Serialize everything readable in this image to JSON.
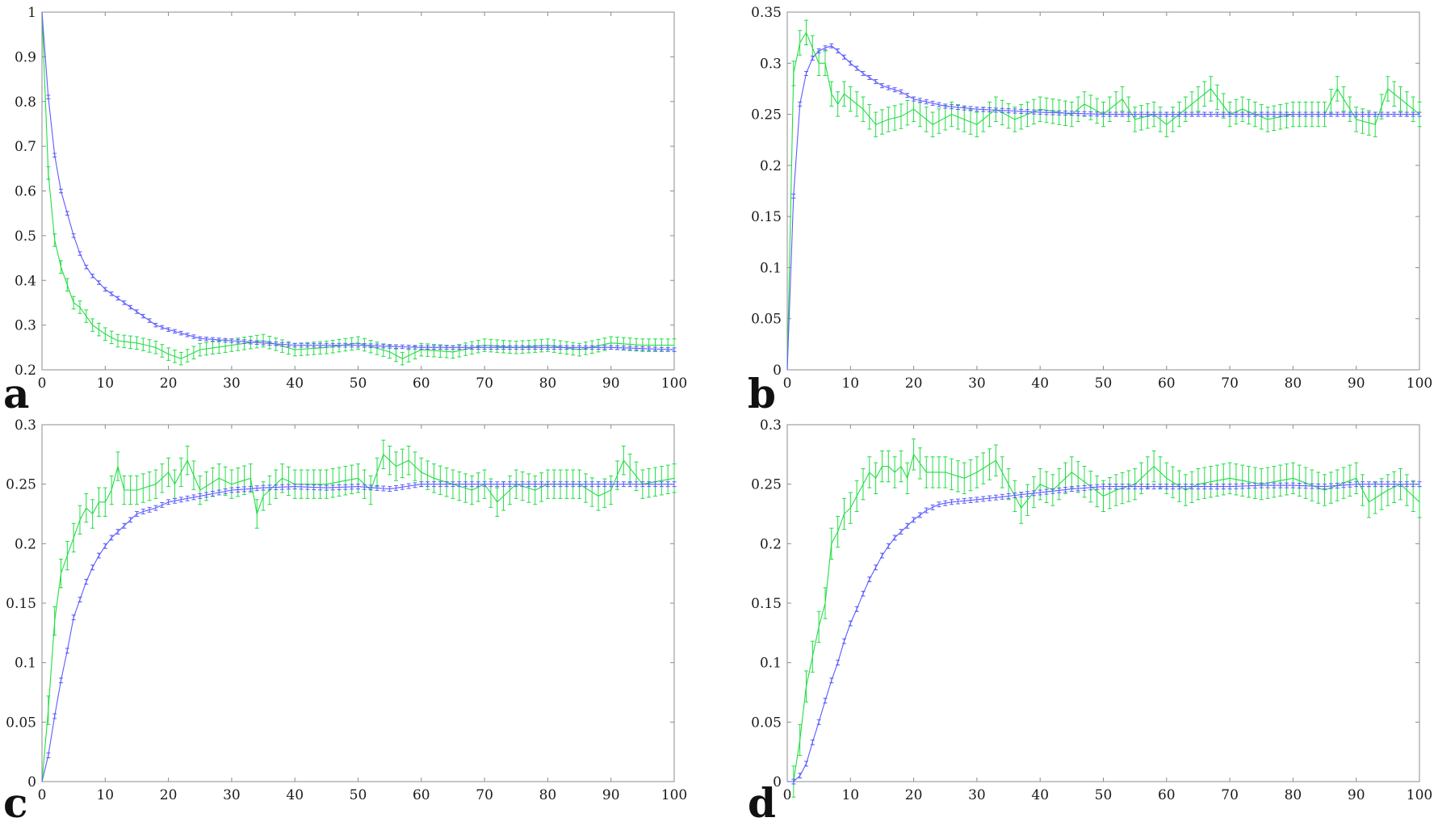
{
  "colors": {
    "series_blue": "#5b5bff",
    "series_green": "#22dd44",
    "axis": "#8c8c8c"
  },
  "chart_data": [
    {
      "type": "line",
      "panel_label": "a",
      "xlim": [
        0,
        100
      ],
      "ylim": [
        0.2,
        1
      ],
      "xticks": [
        "0",
        "10",
        "20",
        "30",
        "40",
        "50",
        "60",
        "70",
        "80",
        "90",
        "100"
      ],
      "yticks": [
        "0.2",
        "0.3",
        "0.4",
        "0.5",
        "0.6",
        "0.7",
        "0.8",
        "0.9",
        "1"
      ],
      "series": [
        {
          "x": [
            0,
            1,
            2,
            3,
            4,
            5,
            6,
            7,
            8,
            10,
            12,
            15,
            18,
            20,
            25,
            30,
            40,
            50,
            60,
            70,
            80,
            90,
            100
          ],
          "values": [
            1.0,
            0.81,
            0.68,
            0.6,
            0.55,
            0.5,
            0.46,
            0.43,
            0.41,
            0.38,
            0.36,
            0.33,
            0.3,
            0.29,
            0.27,
            0.265,
            0.255,
            0.255,
            0.25,
            0.25,
            0.25,
            0.25,
            0.245
          ],
          "err": 0.004
        },
        {
          "x": [
            0,
            1,
            2,
            3,
            4,
            5,
            6,
            7,
            8,
            10,
            12,
            15,
            18,
            20,
            22,
            25,
            30,
            35,
            40,
            45,
            50,
            55,
            57,
            60,
            65,
            70,
            75,
            80,
            85,
            90,
            95,
            100
          ],
          "values": [
            1.0,
            0.64,
            0.49,
            0.43,
            0.39,
            0.35,
            0.34,
            0.32,
            0.3,
            0.28,
            0.265,
            0.26,
            0.25,
            0.235,
            0.225,
            0.245,
            0.255,
            0.265,
            0.245,
            0.25,
            0.26,
            0.24,
            0.225,
            0.245,
            0.24,
            0.255,
            0.25,
            0.255,
            0.245,
            0.26,
            0.255,
            0.255
          ],
          "err": 0.014
        }
      ]
    },
    {
      "type": "line",
      "panel_label": "b",
      "xlim": [
        0,
        100
      ],
      "ylim": [
        0,
        0.35
      ],
      "xticks": [
        "0",
        "10",
        "20",
        "30",
        "40",
        "50",
        "60",
        "70",
        "80",
        "90",
        "100"
      ],
      "yticks": [
        "0",
        "0.05",
        "0.1",
        "0.15",
        "0.2",
        "0.25",
        "0.3",
        "0.35"
      ],
      "series": [
        {
          "x": [
            0,
            1,
            2,
            3,
            4,
            5,
            6,
            7,
            8,
            10,
            12,
            15,
            18,
            20,
            25,
            30,
            40,
            50,
            60,
            70,
            80,
            90,
            100
          ],
          "values": [
            0,
            0.17,
            0.26,
            0.29,
            0.305,
            0.312,
            0.315,
            0.317,
            0.312,
            0.3,
            0.29,
            0.278,
            0.272,
            0.265,
            0.258,
            0.255,
            0.252,
            0.25,
            0.25,
            0.25,
            0.25,
            0.25,
            0.25
          ],
          "err": 0.002
        },
        {
          "x": [
            0,
            1,
            2,
            3,
            4,
            5,
            6,
            7,
            8,
            9,
            10,
            12,
            14,
            16,
            18,
            20,
            23,
            26,
            30,
            33,
            36,
            40,
            45,
            47,
            50,
            53,
            55,
            58,
            60,
            63,
            67,
            70,
            72,
            76,
            80,
            85,
            87,
            90,
            93,
            95,
            100
          ],
          "values": [
            0,
            0.29,
            0.32,
            0.33,
            0.315,
            0.3,
            0.3,
            0.27,
            0.26,
            0.27,
            0.265,
            0.255,
            0.24,
            0.245,
            0.248,
            0.255,
            0.24,
            0.25,
            0.24,
            0.255,
            0.245,
            0.255,
            0.25,
            0.26,
            0.25,
            0.265,
            0.245,
            0.25,
            0.24,
            0.255,
            0.275,
            0.25,
            0.255,
            0.245,
            0.25,
            0.25,
            0.275,
            0.245,
            0.24,
            0.275,
            0.25
          ],
          "err": 0.012
        }
      ]
    },
    {
      "type": "line",
      "panel_label": "c",
      "xlim": [
        0,
        100
      ],
      "ylim": [
        0,
        0.3
      ],
      "xticks": [
        "0",
        "10",
        "20",
        "30",
        "40",
        "50",
        "60",
        "70",
        "80",
        "90",
        "100"
      ],
      "yticks": [
        "0",
        "0.05",
        "0.1",
        "0.15",
        "0.2",
        "0.25",
        "0.3"
      ],
      "series": [
        {
          "x": [
            0,
            1,
            2,
            3,
            4,
            5,
            6,
            7,
            8,
            9,
            10,
            11,
            12,
            13,
            14,
            15,
            16,
            18,
            20,
            22,
            25,
            28,
            30,
            35,
            40,
            45,
            50,
            55,
            60,
            65,
            70,
            80,
            90,
            100
          ],
          "values": [
            0,
            0.022,
            0.055,
            0.085,
            0.11,
            0.138,
            0.153,
            0.168,
            0.18,
            0.19,
            0.198,
            0.205,
            0.21,
            0.215,
            0.22,
            0.225,
            0.227,
            0.23,
            0.235,
            0.237,
            0.24,
            0.243,
            0.245,
            0.247,
            0.248,
            0.247,
            0.248,
            0.246,
            0.25,
            0.25,
            0.25,
            0.25,
            0.25,
            0.25
          ],
          "err": 0.002
        },
        {
          "x": [
            0,
            1,
            2,
            3,
            4,
            5,
            6,
            7,
            8,
            9,
            10,
            11,
            12,
            13,
            15,
            18,
            20,
            21,
            23,
            25,
            28,
            30,
            33,
            34,
            35,
            38,
            40,
            45,
            50,
            52,
            54,
            56,
            58,
            60,
            62,
            65,
            68,
            70,
            72,
            75,
            78,
            80,
            85,
            88,
            90,
            92,
            95,
            100
          ],
          "values": [
            0,
            0.06,
            0.135,
            0.175,
            0.19,
            0.205,
            0.22,
            0.23,
            0.225,
            0.235,
            0.235,
            0.245,
            0.265,
            0.245,
            0.245,
            0.25,
            0.26,
            0.25,
            0.27,
            0.245,
            0.255,
            0.25,
            0.255,
            0.225,
            0.24,
            0.255,
            0.25,
            0.25,
            0.255,
            0.245,
            0.275,
            0.265,
            0.27,
            0.26,
            0.255,
            0.25,
            0.245,
            0.25,
            0.235,
            0.25,
            0.245,
            0.25,
            0.25,
            0.24,
            0.245,
            0.27,
            0.25,
            0.255
          ],
          "err": 0.012
        }
      ]
    },
    {
      "type": "line",
      "panel_label": "d",
      "xlim": [
        0,
        100
      ],
      "ylim": [
        0,
        0.3
      ],
      "xticks": [
        "0",
        "10",
        "20",
        "30",
        "40",
        "50",
        "60",
        "70",
        "80",
        "90",
        "100"
      ],
      "yticks": [
        "0",
        "0.05",
        "0.1",
        "0.15",
        "0.2",
        "0.25",
        "0.3"
      ],
      "series": [
        {
          "x": [
            0,
            1,
            2,
            3,
            4,
            5,
            6,
            7,
            8,
            9,
            10,
            11,
            12,
            13,
            14,
            15,
            16,
            17,
            18,
            19,
            20,
            22,
            24,
            26,
            28,
            30,
            35,
            40,
            45,
            50,
            55,
            60,
            65,
            70,
            75,
            80,
            85,
            90,
            95,
            100
          ],
          "values": [
            0,
            0,
            0.005,
            0.015,
            0.033,
            0.05,
            0.068,
            0.085,
            0.1,
            0.118,
            0.133,
            0.145,
            0.158,
            0.17,
            0.18,
            0.19,
            0.198,
            0.205,
            0.21,
            0.215,
            0.22,
            0.228,
            0.233,
            0.235,
            0.236,
            0.237,
            0.24,
            0.243,
            0.246,
            0.248,
            0.248,
            0.248,
            0.248,
            0.248,
            0.249,
            0.249,
            0.248,
            0.25,
            0.25,
            0.25
          ],
          "err": 0.002
        },
        {
          "x": [
            0,
            1,
            2,
            3,
            4,
            5,
            6,
            7,
            8,
            9,
            10,
            11,
            12,
            13,
            14,
            15,
            16,
            17,
            18,
            19,
            20,
            22,
            25,
            28,
            30,
            33,
            35,
            37,
            40,
            42,
            45,
            50,
            52,
            55,
            58,
            60,
            63,
            65,
            70,
            75,
            80,
            85,
            90,
            92,
            95,
            97,
            100
          ],
          "values": [
            0,
            0,
            0.035,
            0.08,
            0.105,
            0.13,
            0.15,
            0.2,
            0.21,
            0.225,
            0.23,
            0.24,
            0.25,
            0.26,
            0.255,
            0.265,
            0.265,
            0.26,
            0.265,
            0.255,
            0.275,
            0.26,
            0.26,
            0.255,
            0.26,
            0.27,
            0.25,
            0.23,
            0.25,
            0.245,
            0.26,
            0.24,
            0.245,
            0.25,
            0.265,
            0.255,
            0.245,
            0.25,
            0.255,
            0.25,
            0.255,
            0.245,
            0.255,
            0.235,
            0.245,
            0.25,
            0.235
          ],
          "err": 0.013
        }
      ]
    }
  ]
}
